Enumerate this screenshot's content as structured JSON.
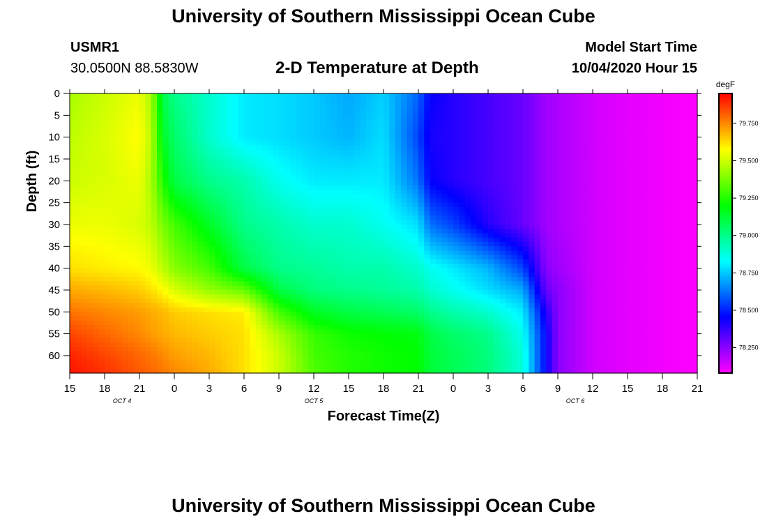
{
  "header": {
    "title": "University of Southern Mississippi Ocean Cube",
    "station_id": "USMR1",
    "station_coords": "30.0500N 88.5830W",
    "chart_title": "2-D Temperature at Depth",
    "model_start_label": "Model Start Time",
    "model_start_value": "10/04/2020 Hour 15"
  },
  "footer": {
    "title": "University of Southern Mississippi Ocean Cube"
  },
  "chart_data": {
    "type": "heatmap",
    "title": "2-D Temperature at Depth",
    "xlabel": "Forecast Time(Z)",
    "ylabel": "Depth (ft)",
    "x_range_hours": [
      0,
      54
    ],
    "x_ticks": [
      "15",
      "18",
      "21",
      "0",
      "3",
      "6",
      "9",
      "12",
      "15",
      "18",
      "21",
      "0",
      "3",
      "6",
      "9",
      "12",
      "15",
      "18",
      "21"
    ],
    "date_labels": [
      {
        "label": "OCT 4",
        "hour": 4.5
      },
      {
        "label": "OCT 5",
        "hour": 21
      },
      {
        "label": "OCT 6",
        "hour": 43.5
      }
    ],
    "y_range": [
      0,
      64
    ],
    "y_ticks": [
      0,
      5,
      10,
      15,
      20,
      25,
      30,
      35,
      40,
      45,
      50,
      55,
      60
    ],
    "colorbar": {
      "unit": "degF",
      "min": 78.08,
      "max": 79.95,
      "ticks": [
        "79.750",
        "79.500",
        "79.250",
        "79.000",
        "78.750",
        "78.500",
        "78.250"
      ],
      "tick_values": [
        79.75,
        79.5,
        79.25,
        79.0,
        78.75,
        78.5,
        78.25
      ]
    },
    "temperature_grid": {
      "hours": [
        0,
        3,
        6,
        7,
        8,
        9,
        12,
        15,
        18,
        21,
        24,
        27,
        30,
        31,
        33,
        36,
        39,
        41,
        42,
        45,
        48,
        51,
        54
      ],
      "depths": [
        0,
        10,
        20,
        30,
        40,
        45,
        50,
        55,
        60,
        64
      ],
      "values_by_depth": [
        [
          79.45,
          79.5,
          79.55,
          79.45,
          79.1,
          79.0,
          78.9,
          78.8,
          78.78,
          78.75,
          78.7,
          78.76,
          78.6,
          78.45,
          78.4,
          78.35,
          78.3,
          78.22,
          78.2,
          78.15,
          78.12,
          78.1,
          78.08
        ],
        [
          79.48,
          79.52,
          79.58,
          79.48,
          79.15,
          79.05,
          78.9,
          78.8,
          78.78,
          78.75,
          78.72,
          78.78,
          78.55,
          78.42,
          78.4,
          78.35,
          78.3,
          78.22,
          78.2,
          78.15,
          78.12,
          78.1,
          78.08
        ],
        [
          79.5,
          79.52,
          79.55,
          79.45,
          79.25,
          79.1,
          79.0,
          78.95,
          78.85,
          78.8,
          78.8,
          78.8,
          78.62,
          78.45,
          78.4,
          78.35,
          78.3,
          78.22,
          78.2,
          78.15,
          78.12,
          78.1,
          78.08
        ],
        [
          79.55,
          79.55,
          79.52,
          79.48,
          79.38,
          79.3,
          79.15,
          79.0,
          78.95,
          78.9,
          78.9,
          78.85,
          78.78,
          78.62,
          78.55,
          78.4,
          78.3,
          78.22,
          78.2,
          78.15,
          78.12,
          78.1,
          78.08
        ],
        [
          79.62,
          79.6,
          79.58,
          79.55,
          79.48,
          79.4,
          79.3,
          79.1,
          79.0,
          78.98,
          78.95,
          78.95,
          78.9,
          78.85,
          78.8,
          78.72,
          78.55,
          78.25,
          78.22,
          78.15,
          78.12,
          78.1,
          78.08
        ],
        [
          79.7,
          79.68,
          79.65,
          79.62,
          79.58,
          79.52,
          79.42,
          79.35,
          79.1,
          79.02,
          79.0,
          78.98,
          78.95,
          78.9,
          78.85,
          78.78,
          78.7,
          78.3,
          78.25,
          78.15,
          78.12,
          78.1,
          78.08
        ],
        [
          79.78,
          79.75,
          79.72,
          79.7,
          79.68,
          79.65,
          79.62,
          79.6,
          79.3,
          79.15,
          79.1,
          79.08,
          79.05,
          79.0,
          78.95,
          78.9,
          78.8,
          78.4,
          78.25,
          78.15,
          78.12,
          78.1,
          78.08
        ],
        [
          79.85,
          79.8,
          79.75,
          79.72,
          79.7,
          79.68,
          79.65,
          79.62,
          79.45,
          79.28,
          79.22,
          79.2,
          79.18,
          79.1,
          79.05,
          79.0,
          78.85,
          78.45,
          78.25,
          78.15,
          78.12,
          78.1,
          78.08
        ],
        [
          79.9,
          79.85,
          79.8,
          79.78,
          79.75,
          79.72,
          79.68,
          79.62,
          79.5,
          79.3,
          79.25,
          79.22,
          79.2,
          79.12,
          79.08,
          79.02,
          78.88,
          78.45,
          78.25,
          78.15,
          78.12,
          78.1,
          78.08
        ],
        [
          79.92,
          79.88,
          79.82,
          79.8,
          79.78,
          79.75,
          79.7,
          79.62,
          79.5,
          79.32,
          79.25,
          79.22,
          79.2,
          79.12,
          79.08,
          79.02,
          78.88,
          78.45,
          78.25,
          78.15,
          78.12,
          78.1,
          78.08
        ]
      ]
    }
  }
}
